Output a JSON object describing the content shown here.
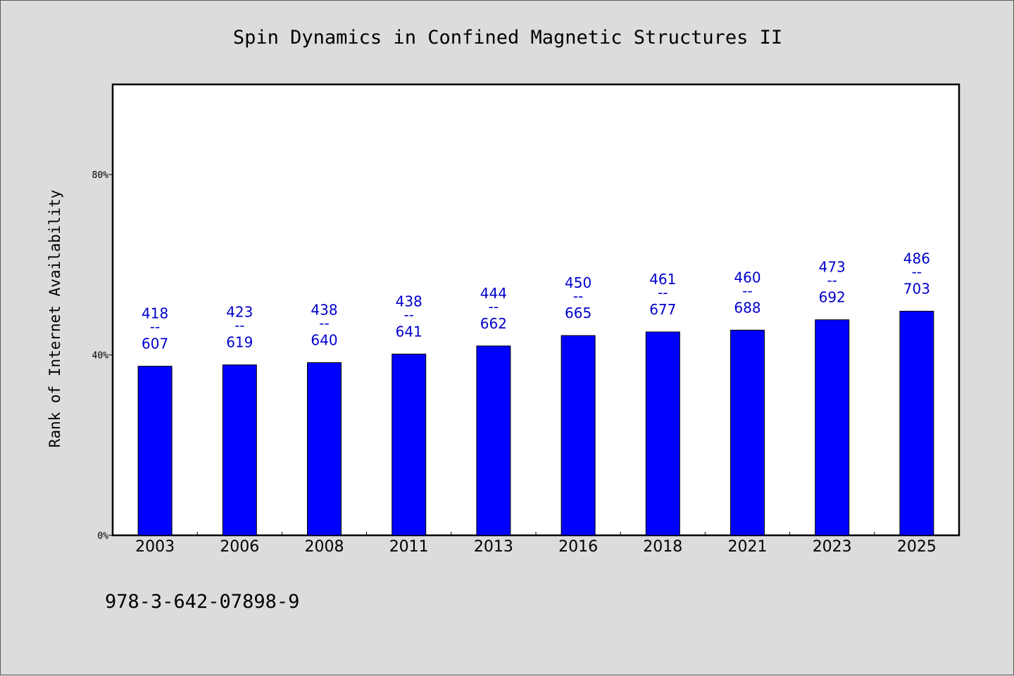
{
  "chart_data": {
    "type": "bar",
    "title": "Spin Dynamics in Confined Magnetic Structures II",
    "ylabel": "Rank of Internet Availability",
    "xlabel": "",
    "categories": [
      "2003",
      "2006",
      "2008",
      "2011",
      "2013",
      "2016",
      "2018",
      "2021",
      "2023",
      "2025"
    ],
    "values": [
      37.5,
      37.8,
      38.3,
      40.2,
      42.0,
      44.3,
      45.1,
      45.5,
      47.8,
      49.7
    ],
    "data_labels": [
      {
        "low": "418",
        "sep": "--",
        "high": "607"
      },
      {
        "low": "423",
        "sep": "--",
        "high": "619"
      },
      {
        "low": "438",
        "sep": "--",
        "high": "640"
      },
      {
        "low": "438",
        "sep": "--",
        "high": "641"
      },
      {
        "low": "444",
        "sep": "--",
        "high": "662"
      },
      {
        "low": "450",
        "sep": "--",
        "high": "665"
      },
      {
        "low": "461",
        "sep": "--",
        "high": "677"
      },
      {
        "low": "460",
        "sep": "--",
        "high": "688"
      },
      {
        "low": "473",
        "sep": "--",
        "high": "692"
      },
      {
        "low": "486",
        "sep": "--",
        "high": "703"
      }
    ],
    "ylim": [
      0,
      100
    ],
    "yticks": [
      0,
      40,
      80
    ],
    "ytick_labels": [
      "0%",
      "40%",
      "80%"
    ],
    "grid": false,
    "bar_color": "#0000ff",
    "label_color": "#0000cc"
  },
  "footer": {
    "isbn": "978-3-642-07898-9"
  }
}
